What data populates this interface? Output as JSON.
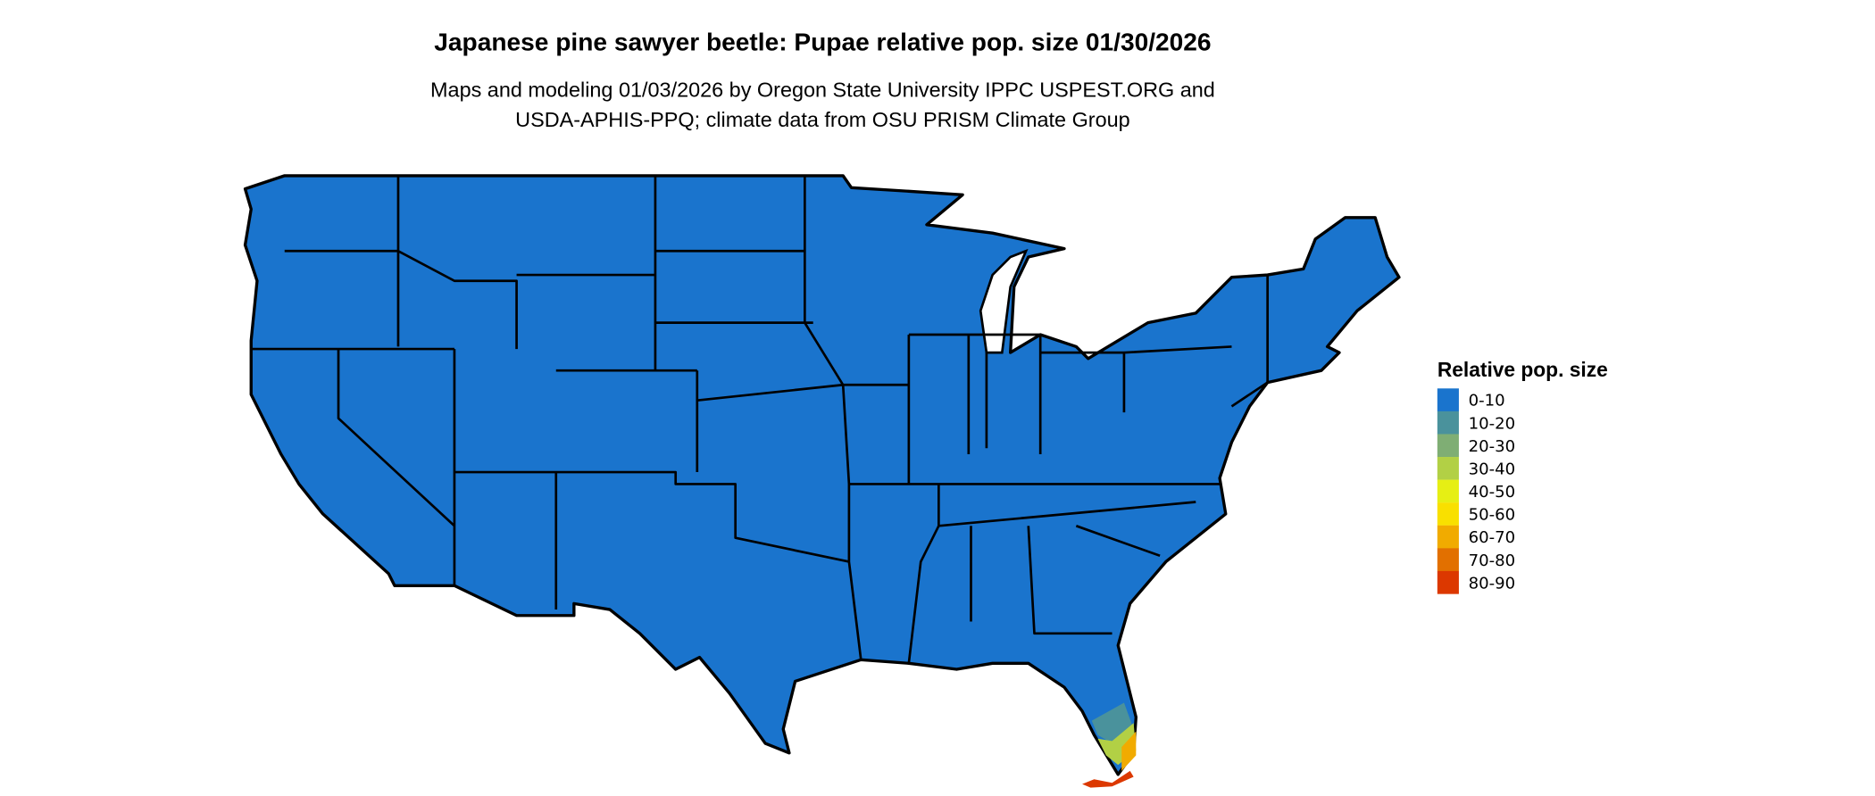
{
  "title": "Japanese pine sawyer beetle: Pupae relative pop. size 01/30/2026",
  "subtitle_line1": "Maps and modeling 01/03/2026 by Oregon State University IPPC USPEST.ORG and",
  "subtitle_line2": "USDA-APHIS-PPQ; climate data from OSU PRISM Climate Group",
  "legend": {
    "title": "Relative pop. size",
    "items": [
      {
        "label": "0-10",
        "color": "#1a74cd"
      },
      {
        "label": "10-20",
        "color": "#4a929c"
      },
      {
        "label": "20-30",
        "color": "#7fae74"
      },
      {
        "label": "30-40",
        "color": "#b2d045"
      },
      {
        "label": "40-50",
        "color": "#e6ef14"
      },
      {
        "label": "50-60",
        "color": "#f9e000"
      },
      {
        "label": "60-70",
        "color": "#f1ab00"
      },
      {
        "label": "70-80",
        "color": "#e27000"
      },
      {
        "label": "80-90",
        "color": "#dc3800"
      }
    ]
  },
  "map": {
    "region": "Contiguous United States",
    "dominant_class": "0-10",
    "hotspot": "South Florida and Florida Keys (10-20 up to 80-90)"
  }
}
